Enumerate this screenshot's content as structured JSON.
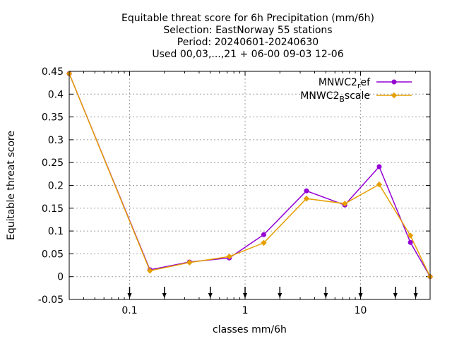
{
  "chart_data": {
    "type": "line",
    "title_lines": [
      "Equitable threat score  for 6h Precipitation (mm/6h)",
      "Selection: EastNorway     55 stations",
      "Period: 20240601-20240630",
      "Used 00,03,...,21 + 06-00 09-03 12-06"
    ],
    "xlabel": "classes mm/6h",
    "ylabel": "Equitable threat score",
    "x_scale": "log",
    "xlim": [
      0.03,
      40
    ],
    "ylim": [
      -0.05,
      0.45
    ],
    "y_ticks": [
      -0.05,
      0,
      0.05,
      0.1,
      0.15,
      0.2,
      0.25,
      0.3,
      0.35,
      0.4,
      0.45
    ],
    "y_tick_labels": [
      "-0.05",
      "0",
      "0.05",
      "0.1",
      "0.15",
      "0.2",
      "0.25",
      "0.3",
      "0.35",
      "0.4",
      "0.45"
    ],
    "x_ticks": [
      0.1,
      1,
      10
    ],
    "x_tick_labels": [
      "0.1",
      "1",
      "10"
    ],
    "grid": true,
    "legend_position": "top-right",
    "class_arrows_x": [
      0.1,
      0.2,
      0.5,
      1,
      2,
      5,
      10,
      20,
      30
    ],
    "x": [
      0.03,
      0.15,
      0.33,
      0.73,
      1.45,
      3.4,
      7.3,
      14.5,
      27,
      40
    ],
    "series": [
      {
        "name_main": "MNWC2",
        "name_sub": "r",
        "name_rest": "ef",
        "color": "#9400d3",
        "values": [
          0.445,
          0.015,
          0.032,
          0.041,
          0.092,
          0.188,
          0.157,
          0.241,
          0.075,
          0.0
        ]
      },
      {
        "name_main": "MNWC2",
        "name_sub": "B",
        "name_rest": "scale",
        "color": "#e69f00",
        "values": [
          0.445,
          0.013,
          0.031,
          0.044,
          0.074,
          0.171,
          0.16,
          0.202,
          0.09,
          0.0
        ]
      }
    ]
  }
}
